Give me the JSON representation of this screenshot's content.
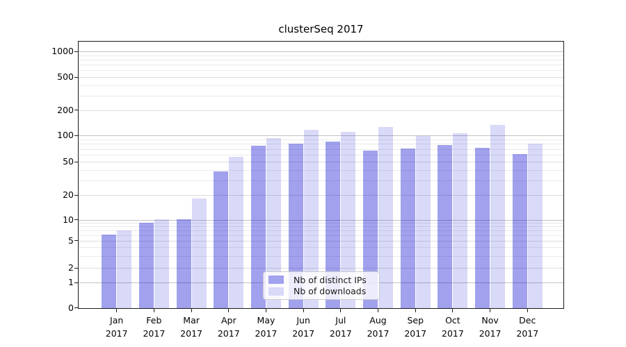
{
  "title": "clusterSeq 2017",
  "legend": {
    "items": [
      {
        "label": "Nb of distinct IPs",
        "color": "#a2a2ee"
      },
      {
        "label": "Nb of downloads",
        "color": "#d9d9f8"
      }
    ]
  },
  "chart_data": {
    "type": "bar",
    "title": "clusterSeq 2017",
    "categories": [
      "Jan 2017",
      "Feb 2017",
      "Mar 2017",
      "Apr 2017",
      "May 2017",
      "Jun 2017",
      "Jul 2017",
      "Aug 2017",
      "Sep 2017",
      "Oct 2017",
      "Nov 2017",
      "Dec 2017"
    ],
    "series": [
      {
        "name": "Nb of distinct IPs",
        "legend_color": "#a2a2ee",
        "fill": "rgba(0,0,208,0.37)",
        "values": [
          6,
          9,
          10,
          38,
          75,
          80,
          84,
          66,
          70,
          77,
          72,
          61
        ]
      },
      {
        "name": "Nb of downloads",
        "legend_color": "#d9d9f8",
        "fill": "rgba(0,0,208,0.15)",
        "values": [
          7,
          10,
          18,
          56,
          92,
          115,
          110,
          125,
          97,
          105,
          131,
          79
        ]
      }
    ],
    "xlabel": "",
    "ylabel": "",
    "y_scale": "symlog",
    "y_ticks": [
      0,
      1,
      2,
      5,
      10,
      20,
      50,
      100,
      200,
      500,
      1000
    ],
    "y_minor_ticks": [
      3,
      4,
      6,
      7,
      8,
      9,
      30,
      40,
      60,
      70,
      80,
      90,
      300,
      400,
      600,
      700,
      800,
      900
    ],
    "ylim": [
      0,
      1320
    ],
    "grid": true,
    "legend_position": "lower center"
  },
  "colors": {
    "bar_dark": "#a2a2ee",
    "bar_light": "#d9d9f8",
    "grid_major": "#c2c2c2",
    "grid_minor": "#eaeaea",
    "axis": "#1a1a1a",
    "background": "#ffffff"
  }
}
